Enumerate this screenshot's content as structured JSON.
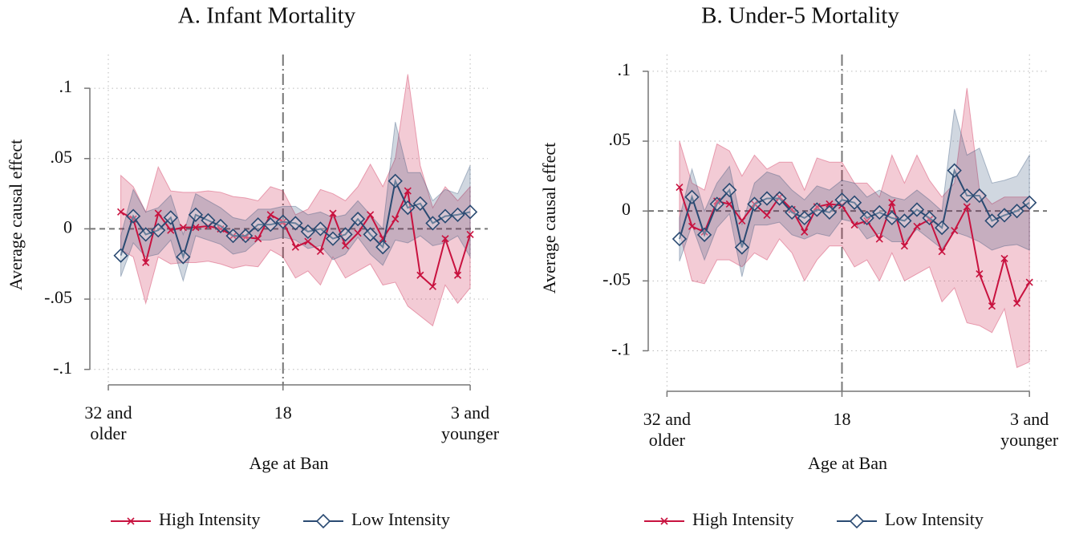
{
  "chart_data": [
    {
      "type": "line",
      "title": "A. Infant Mortality",
      "x_label": "Age at Ban",
      "y_label": "Average causal effect",
      "x": [
        31,
        30,
        29,
        28,
        27,
        26,
        25,
        24,
        23,
        22,
        21,
        20,
        19,
        18,
        17,
        16,
        15,
        14,
        13,
        12,
        11,
        10,
        9,
        8,
        7,
        6,
        5,
        4,
        3
      ],
      "xlim": [
        33.48,
        1.59
      ],
      "xticks": [
        {
          "value": 32,
          "label": "32 and\nolder"
        },
        18,
        {
          "value": 3,
          "label": "3 and\nyounger"
        }
      ],
      "ylim": [
        -0.111,
        0.124
      ],
      "yticks": [
        {
          "value": -0.1,
          "label": "-.1"
        },
        {
          "value": -0.05,
          "label": "-.05"
        },
        0,
        {
          "value": 0.05,
          "label": ".05"
        },
        {
          "value": 0.1,
          "label": ".1"
        }
      ],
      "grid": true,
      "xline": 18,
      "yline": 0,
      "series": [
        {
          "name": "High Intensity",
          "color": "#c8123f",
          "marker": "x",
          "values": [
            0.012,
            0.007,
            -0.024,
            0.011,
            -0.001,
            0.001,
            0.001,
            0.002,
            0,
            -0.005,
            -0.006,
            -0.007,
            0.01,
            0.005,
            -0.013,
            -0.009,
            -0.016,
            0.011,
            -0.012,
            -0.003,
            0.01,
            -0.007,
            0.007,
            0.027,
            -0.033,
            -0.041,
            -0.007,
            -0.033,
            -0.004
          ],
          "ci_upper": [
            0.038,
            0.03,
            0.012,
            0.044,
            0.027,
            0.026,
            0.026,
            0.027,
            0.026,
            0.023,
            0.022,
            0.02,
            0.03,
            0.027,
            0.01,
            0.014,
            0.028,
            0.025,
            0.02,
            0.03,
            0.046,
            0.03,
            0.05,
            0.11,
            0.045,
            0.015,
            0.03,
            0.02,
            0.03
          ],
          "ci_lower": [
            -0.015,
            -0.02,
            -0.053,
            -0.02,
            -0.025,
            -0.024,
            -0.024,
            -0.023,
            -0.025,
            -0.028,
            -0.026,
            -0.027,
            -0.015,
            -0.02,
            -0.035,
            -0.03,
            -0.04,
            -0.02,
            -0.035,
            -0.03,
            -0.025,
            -0.04,
            -0.038,
            -0.055,
            -0.062,
            -0.069,
            -0.04,
            -0.053,
            -0.042
          ]
        },
        {
          "name": "Low Intensity",
          "color": "#2a4a72",
          "marker": "diamond",
          "values": [
            -0.019,
            0.009,
            -0.004,
            -0.001,
            0.008,
            -0.02,
            0.01,
            0.006,
            0.002,
            -0.005,
            -0.005,
            0.003,
            0.003,
            0.005,
            0.004,
            -0.002,
            0,
            -0.007,
            -0.004,
            0.007,
            -0.004,
            -0.013,
            0.034,
            0.015,
            0.018,
            0.004,
            0.009,
            0.01,
            0.012
          ],
          "ci_upper": [
            -0.005,
            0.028,
            0.012,
            0.015,
            0.024,
            -0.004,
            0.025,
            0.02,
            0.015,
            0.008,
            0.006,
            0.014,
            0.014,
            0.016,
            0.016,
            0.01,
            0.012,
            0.008,
            0.01,
            0.02,
            0.01,
            0,
            0.076,
            0.04,
            0.04,
            0.02,
            0.028,
            0.025,
            0.045
          ],
          "ci_lower": [
            -0.034,
            -0.01,
            -0.02,
            -0.018,
            -0.008,
            -0.037,
            -0.005,
            -0.008,
            -0.011,
            -0.018,
            -0.016,
            -0.008,
            -0.008,
            -0.006,
            -0.008,
            -0.014,
            -0.012,
            -0.022,
            -0.018,
            -0.006,
            -0.018,
            -0.026,
            -0.008,
            -0.01,
            -0.005,
            -0.012,
            -0.01,
            -0.005,
            -0.02
          ]
        }
      ]
    },
    {
      "type": "line",
      "title": "B. Under-5 Mortality",
      "x_label": "Age at Ban",
      "y_label": "Average causal effect",
      "x": [
        31,
        30,
        29,
        28,
        27,
        26,
        25,
        24,
        23,
        22,
        21,
        20,
        19,
        18,
        17,
        16,
        15,
        14,
        13,
        12,
        11,
        10,
        9,
        8,
        7,
        6,
        5,
        4,
        3
      ],
      "xlim": [
        33.5,
        1.6
      ],
      "xticks": [
        {
          "value": 32,
          "label": "32 and\nolder"
        },
        18,
        {
          "value": 3,
          "label": "3 and\nyounger"
        }
      ],
      "ylim": [
        -0.129,
        0.112
      ],
      "yticks": [
        {
          "value": -0.1,
          "label": "-.1"
        },
        {
          "value": -0.05,
          "label": "-.05"
        },
        0,
        {
          "value": 0.05,
          "label": ".05"
        },
        {
          "value": 0.1,
          "label": ".1"
        }
      ],
      "grid": true,
      "xline": 18,
      "yline": 0,
      "series": [
        {
          "name": "High Intensity",
          "color": "#c8123f",
          "marker": "x",
          "values": [
            0.017,
            -0.011,
            -0.015,
            0.007,
            0.005,
            -0.007,
            0.005,
            -0.003,
            0.01,
            0.001,
            -0.015,
            0.003,
            0.005,
            0.004,
            -0.01,
            -0.007,
            -0.02,
            0.006,
            -0.025,
            -0.011,
            -0.006,
            -0.029,
            -0.014,
            0.003,
            -0.045,
            -0.068,
            -0.034,
            -0.066,
            -0.051
          ],
          "ci_upper": [
            0.05,
            0.02,
            0.015,
            0.048,
            0.043,
            0.025,
            0.04,
            0.03,
            0.035,
            0.035,
            0.015,
            0.038,
            0.035,
            0.035,
            0.02,
            0.02,
            0.01,
            0.04,
            0.02,
            0.04,
            0.022,
            0.01,
            0.02,
            0.088,
            0.015,
            0.005,
            0.01,
            0.01,
            0.01
          ],
          "ci_lower": [
            -0.015,
            -0.05,
            -0.052,
            -0.035,
            -0.035,
            -0.04,
            -0.03,
            -0.035,
            -0.02,
            -0.03,
            -0.05,
            -0.035,
            -0.025,
            -0.025,
            -0.04,
            -0.035,
            -0.05,
            -0.03,
            -0.05,
            -0.045,
            -0.04,
            -0.065,
            -0.055,
            -0.08,
            -0.082,
            -0.087,
            -0.07,
            -0.112,
            -0.108
          ]
        },
        {
          "name": "Low Intensity",
          "color": "#2a4a72",
          "marker": "diamond",
          "values": [
            -0.02,
            0.01,
            -0.017,
            0.005,
            0.015,
            -0.026,
            0.005,
            0.009,
            0.009,
            -0.001,
            -0.005,
            0.001,
            -0.001,
            0.008,
            0.006,
            -0.005,
            -0.001,
            -0.005,
            -0.007,
            0.001,
            -0.005,
            -0.012,
            0.029,
            0.011,
            0.011,
            -0.007,
            -0.003,
            0,
            0.006
          ],
          "ci_upper": [
            -0.005,
            0.03,
            0,
            0.02,
            0.032,
            -0.01,
            0.02,
            0.028,
            0.025,
            0.015,
            0.008,
            0.018,
            0.015,
            0.022,
            0.02,
            0.01,
            0.015,
            0.01,
            0.008,
            0.015,
            0.008,
            0,
            0.073,
            0.04,
            0.045,
            0.02,
            0.022,
            0.025,
            0.04
          ],
          "ci_lower": [
            -0.036,
            -0.01,
            -0.035,
            -0.012,
            -0.002,
            -0.047,
            -0.01,
            -0.01,
            -0.008,
            -0.017,
            -0.02,
            -0.016,
            -0.018,
            -0.006,
            -0.008,
            -0.02,
            -0.016,
            -0.022,
            -0.022,
            -0.013,
            -0.02,
            -0.027,
            -0.015,
            -0.018,
            -0.022,
            -0.028,
            -0.025,
            -0.024,
            -0.028
          ]
        }
      ]
    }
  ]
}
